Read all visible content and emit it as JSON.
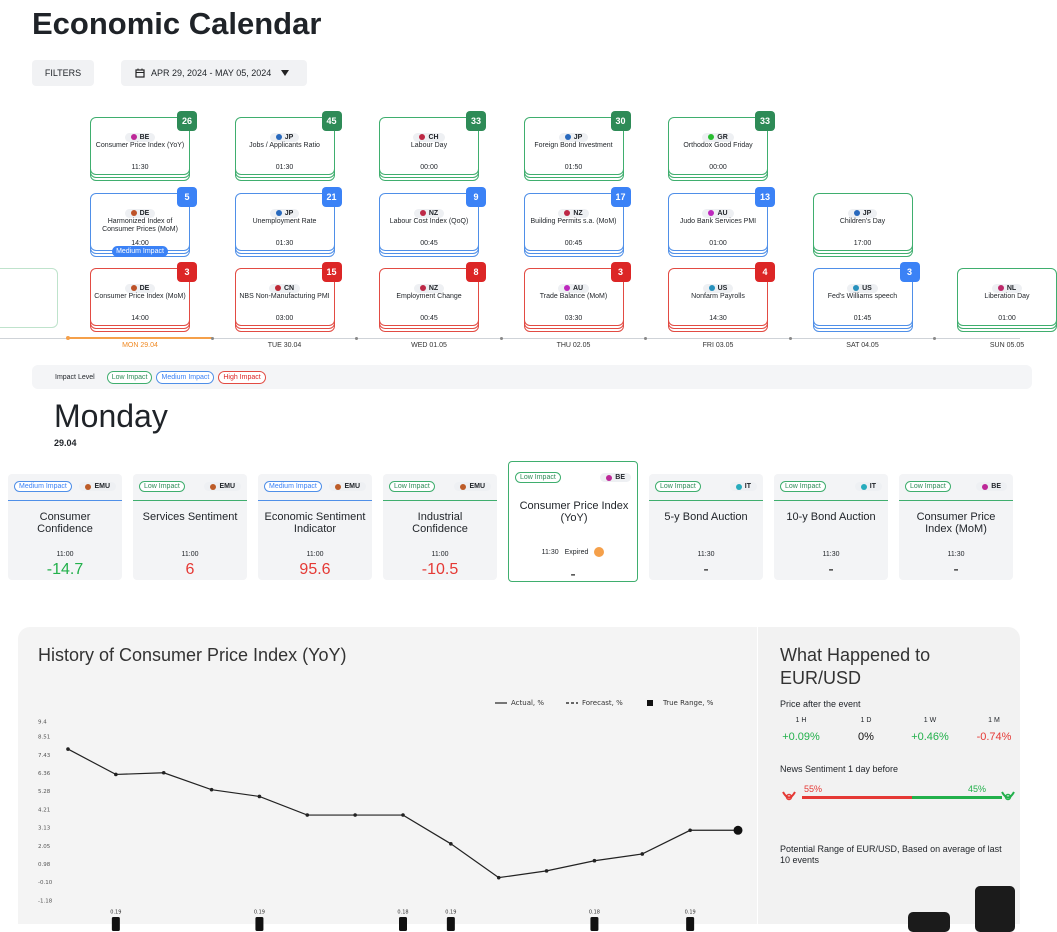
{
  "header": {
    "title": "Economic Calendar",
    "filters": "FILTERS",
    "date_range": "APR 29, 2024 - MAY 05, 2024"
  },
  "timeline": {
    "columns": [
      {
        "day": "MON 29.04",
        "selected": true,
        "events": [
          {
            "impact": "low",
            "country": "BE",
            "title": "Consumer Price Index (YoY)",
            "time": "11:30",
            "count": 26
          },
          {
            "impact": "medium",
            "country": "DE",
            "title": "Harmonized Index of Consumer Prices (MoM)",
            "time": "14:00",
            "count": 5,
            "tag": "Medium Impact"
          },
          {
            "impact": "high",
            "country": "DE",
            "title": "Consumer Price Index (MoM)",
            "time": "14:00",
            "count": 3
          }
        ]
      },
      {
        "day": "TUE 30.04",
        "events": [
          {
            "impact": "low",
            "country": "JP",
            "title": "Jobs / Applicants Ratio",
            "time": "01:30",
            "count": 45
          },
          {
            "impact": "medium",
            "country": "JP",
            "title": "Unemployment Rate",
            "time": "01:30",
            "count": 21
          },
          {
            "impact": "high",
            "country": "CN",
            "title": "NBS Non-Manufacturing PMI",
            "time": "03:00",
            "count": 15
          }
        ]
      },
      {
        "day": "WED 01.05",
        "events": [
          {
            "impact": "low",
            "country": "CH",
            "title": "Labour Day",
            "time": "00:00",
            "count": 33
          },
          {
            "impact": "medium",
            "country": "NZ",
            "title": "Labour Cost Index (QoQ)",
            "time": "00:45",
            "count": 9
          },
          {
            "impact": "high",
            "country": "NZ",
            "title": "Employment Change",
            "time": "00:45",
            "count": 8
          }
        ]
      },
      {
        "day": "THU 02.05",
        "events": [
          {
            "impact": "low",
            "country": "JP",
            "title": "Foreign Bond Investment",
            "time": "01:50",
            "count": 30
          },
          {
            "impact": "medium",
            "country": "NZ",
            "title": "Building Permits s.a. (MoM)",
            "time": "00:45",
            "count": 17
          },
          {
            "impact": "high",
            "country": "AU",
            "title": "Trade Balance (MoM)",
            "time": "03:30",
            "count": 3
          }
        ]
      },
      {
        "day": "FRI 03.05",
        "events": [
          {
            "impact": "low",
            "country": "GR",
            "title": "Orthodox Good Friday",
            "time": "00:00",
            "count": 33
          },
          {
            "impact": "medium",
            "country": "AU",
            "title": "Judo Bank Services PMI",
            "time": "01:00",
            "count": 13
          },
          {
            "impact": "high",
            "country": "US",
            "title": "Nonfarm Payrolls",
            "time": "14:30",
            "count": 4
          }
        ]
      },
      {
        "day": "SAT 04.05",
        "events": [
          {
            "impact": "low",
            "country": "JP",
            "title": "Children's Day",
            "time": "17:00"
          },
          {
            "impact": "medium",
            "country": "US",
            "title": "Fed's Williams speech",
            "time": "01:45",
            "count": 3
          }
        ]
      },
      {
        "day": "SUN 05.05",
        "events": [
          {
            "impact": "low",
            "country": "NL",
            "title": "Liberation Day",
            "time": "01:00"
          }
        ]
      }
    ]
  },
  "impact_legend": {
    "label": "Impact Level",
    "items": [
      {
        "label": "Low Impact",
        "impact": "low"
      },
      {
        "label": "Medium Impact",
        "impact": "medium"
      },
      {
        "label": "High Impact",
        "impact": "high"
      }
    ]
  },
  "day_detail": {
    "day": "Monday",
    "date": "29.04",
    "events": [
      {
        "impact_label": "Medium Impact",
        "impact": "medium",
        "country": "EMU",
        "title": "Consumer Confidence",
        "time": "11:00",
        "value": -14.7,
        "color": "#22b04b"
      },
      {
        "impact_label": "Low Impact",
        "impact": "low",
        "country": "EMU",
        "title": "Services Sentiment",
        "time": "11:00",
        "value": 6,
        "color": "#e53935"
      },
      {
        "impact_label": "Medium Impact",
        "impact": "medium",
        "country": "EMU",
        "title": "Economic Sentiment Indicator",
        "time": "11:00",
        "value": 95.6,
        "color": "#e53935"
      },
      {
        "impact_label": "Low Impact",
        "impact": "low",
        "country": "EMU",
        "title": "Industrial Confidence",
        "time": "11:00",
        "value": -10.5,
        "color": "#e53935"
      },
      {
        "impact_label": "Low Impact",
        "impact": "low",
        "country": "BE",
        "title": "Consumer Price Index (YoY)",
        "time": "11:30",
        "status": "Expired",
        "value": "-",
        "color": "#222222",
        "selected": true
      },
      {
        "impact_label": "Low Impact",
        "impact": "low",
        "country": "IT",
        "title": "5-y Bond Auction",
        "time": "11:30",
        "value": "-",
        "color": "#222222"
      },
      {
        "impact_label": "Low Impact",
        "impact": "low",
        "country": "IT",
        "title": "10-y Bond Auction",
        "time": "11:30",
        "value": "-",
        "color": "#222222"
      },
      {
        "impact_label": "Low Impact",
        "impact": "low",
        "country": "BE",
        "title": "Consumer Price Index (MoM)",
        "time": "11:30",
        "value": "-",
        "color": "#222222"
      }
    ]
  },
  "chart_data": {
    "type": "line",
    "title": "History of Consumer Price Index (YoY)",
    "categories": [
      null,
      null,
      null,
      null,
      null,
      null,
      null,
      null,
      null,
      null,
      null,
      null,
      null,
      null,
      null
    ],
    "series": [
      {
        "name": "Actual, %",
        "color": "#222222",
        "values": [
          7.8,
          6.3,
          6.4,
          5.4,
          5.0,
          3.9,
          3.9,
          3.9,
          2.2,
          0.2,
          0.6,
          1.2,
          1.6,
          3.0,
          3.0
        ]
      },
      {
        "name": "Forecast, %",
        "color": "#111111",
        "values": [
          null,
          null,
          null,
          null,
          null,
          null,
          null,
          null,
          null,
          null,
          null,
          null,
          null,
          null,
          3.0
        ]
      },
      {
        "name": "True Range, %",
        "color": "#111111",
        "values": [
          null,
          0.19,
          null,
          null,
          0.19,
          null,
          null,
          0.18,
          0.19,
          null,
          null,
          0.18,
          null,
          0.19,
          null
        ]
      }
    ],
    "ylim": [
      -1.18,
      9.4
    ],
    "yticks": [
      9.4,
      8.51,
      7.43,
      6.36,
      5.28,
      4.21,
      3.13,
      2.05,
      0.98,
      {
        "value": -0.1,
        "label": "-0.10"
      },
      -1.18
    ]
  },
  "reaction": {
    "title": "What Happened to EUR/USD",
    "price_label": "Price after the event",
    "periods": [
      {
        "label": "1 H",
        "change": "+0.09%",
        "color": "#22b04b"
      },
      {
        "label": "1 D",
        "change": "0%",
        "color": "#111111"
      },
      {
        "label": "1 W",
        "change": "+0.46%",
        "color": "#22b04b"
      },
      {
        "label": "1 M",
        "change": "-0.74%",
        "color": "#e53935"
      }
    ],
    "sentiment": {
      "label": "News Sentiment 1 day before",
      "values": [
        55,
        45
      ],
      "value_labels": [
        "55%",
        "45%"
      ],
      "colors": [
        "#e53935",
        "#22b04b"
      ]
    },
    "range_label": "Potential Range of EUR/USD, Based on average of last 10 events"
  }
}
